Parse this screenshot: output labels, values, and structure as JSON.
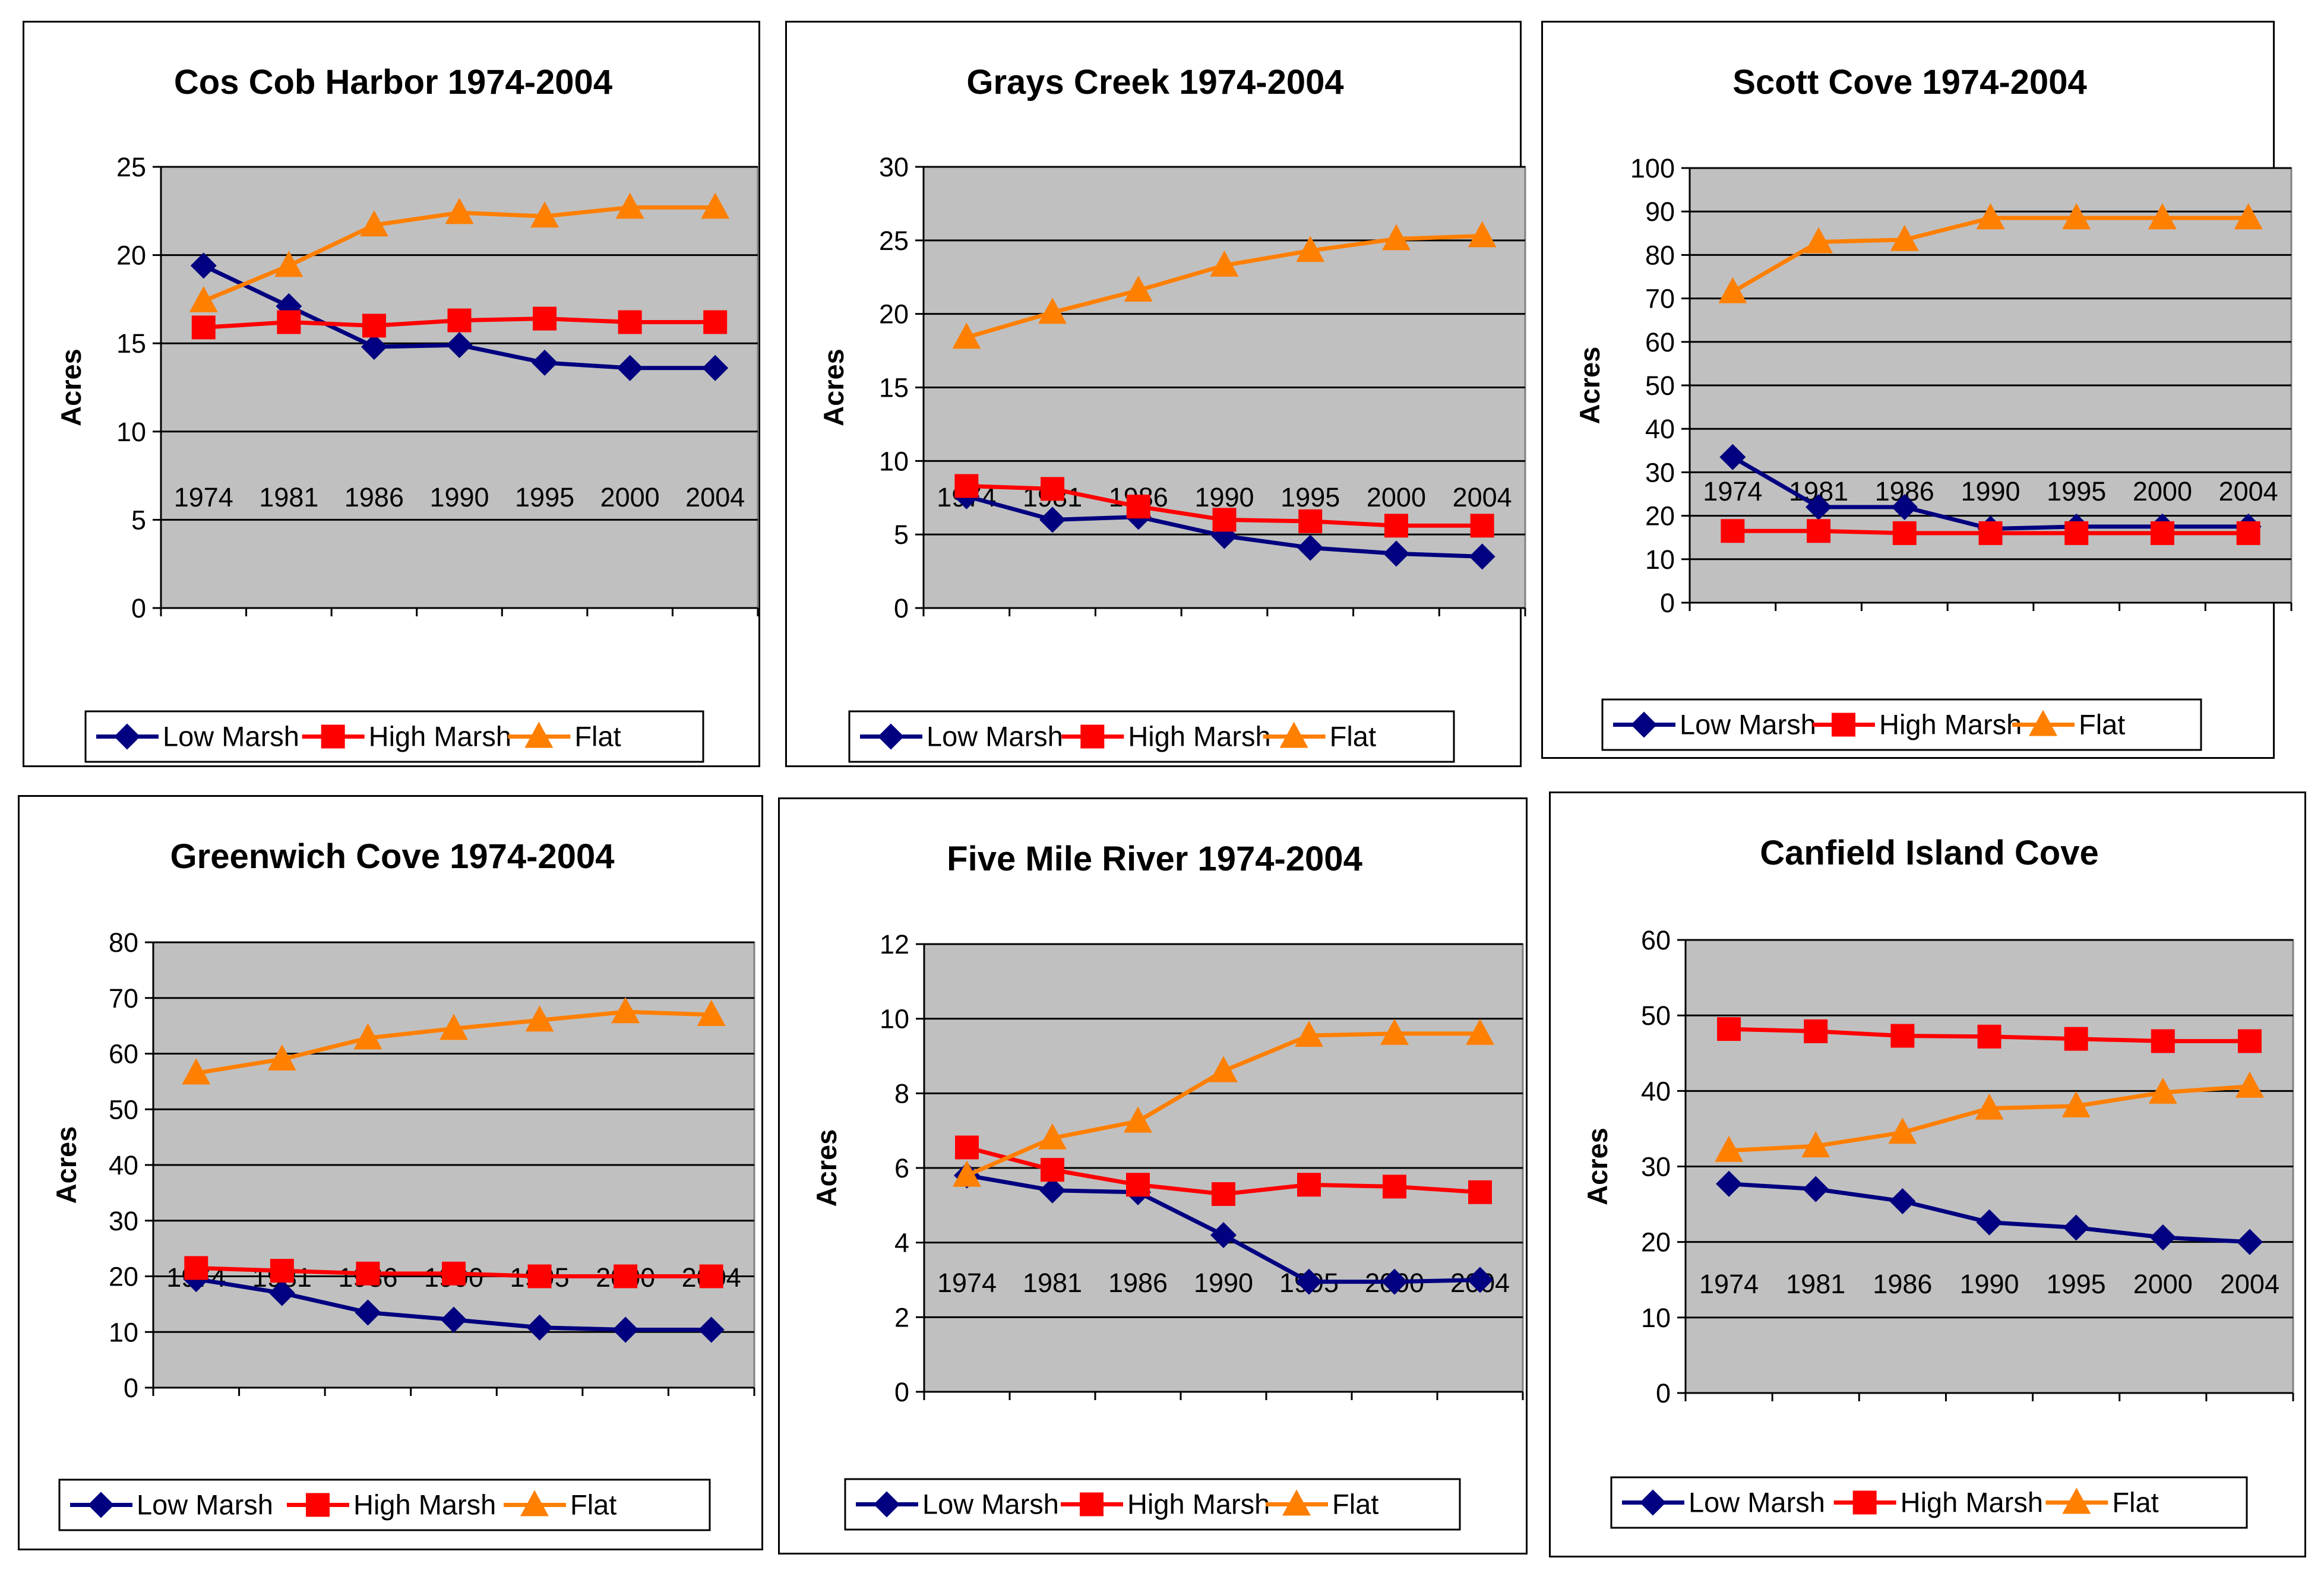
{
  "series_styles": {
    "Low Marsh": {
      "color": "#000080",
      "marker": "diamond"
    },
    "High Marsh": {
      "color": "#ff0000",
      "marker": "square"
    },
    "Flat": {
      "color": "#ff7f00",
      "marker": "triangle"
    }
  },
  "plot_background": "#c0c0c0",
  "chart_data": [
    {
      "type": "line",
      "title": "Cos Cob Harbor 1974-2004",
      "ylabel": "Acres",
      "categories": [
        "1974",
        "1981",
        "1986",
        "1990",
        "1995",
        "2000",
        "2004"
      ],
      "ylim": [
        0,
        25
      ],
      "yticks": [
        0,
        5,
        10,
        15,
        20,
        25
      ],
      "grid": true,
      "legend": "bottom",
      "series": [
        {
          "name": "Low Marsh",
          "values": [
            19.4,
            17.1,
            14.8,
            14.9,
            13.9,
            13.6,
            13.6
          ]
        },
        {
          "name": "High Marsh",
          "values": [
            15.9,
            16.2,
            16.0,
            16.3,
            16.4,
            16.2,
            16.2
          ]
        },
        {
          "name": "Flat",
          "values": [
            17.4,
            19.4,
            21.7,
            22.4,
            22.2,
            22.7,
            22.7
          ]
        }
      ]
    },
    {
      "type": "line",
      "title": "Grays Creek 1974-2004",
      "ylabel": "Acres",
      "categories": [
        "1974",
        "1981",
        "1986",
        "1990",
        "1995",
        "2000",
        "2004"
      ],
      "ylim": [
        0,
        30
      ],
      "yticks": [
        0,
        5,
        10,
        15,
        20,
        25,
        30
      ],
      "grid": true,
      "legend": "bottom",
      "series": [
        {
          "name": "Low Marsh",
          "values": [
            7.6,
            6.0,
            6.2,
            4.9,
            4.1,
            3.7,
            3.5
          ]
        },
        {
          "name": "High Marsh",
          "values": [
            8.3,
            8.1,
            6.9,
            6.0,
            5.9,
            5.6,
            5.6
          ]
        },
        {
          "name": "Flat",
          "values": [
            18.4,
            20.1,
            21.6,
            23.3,
            24.3,
            25.1,
            25.3
          ]
        }
      ]
    },
    {
      "type": "line",
      "title": "Scott Cove 1974-2004",
      "ylabel": "Acres",
      "categories": [
        "1974",
        "1981",
        "1986",
        "1990",
        "1995",
        "2000",
        "2004"
      ],
      "ylim": [
        0,
        100
      ],
      "yticks": [
        0,
        10,
        20,
        30,
        40,
        50,
        60,
        70,
        80,
        90,
        100
      ],
      "grid": true,
      "legend": "bottom",
      "series": [
        {
          "name": "Low Marsh",
          "values": [
            33.5,
            22.0,
            22.0,
            17.0,
            17.5,
            17.5,
            17.5
          ]
        },
        {
          "name": "High Marsh",
          "values": [
            16.5,
            16.5,
            16.0,
            16.0,
            16.0,
            16.0,
            16.0
          ]
        },
        {
          "name": "Flat",
          "values": [
            71.5,
            83.0,
            83.5,
            88.5,
            88.5,
            88.5,
            88.5
          ]
        }
      ]
    },
    {
      "type": "line",
      "title": "Greenwich Cove 1974-2004",
      "ylabel": "Acres",
      "categories": [
        "1974",
        "1981",
        "1986",
        "1990",
        "1995",
        "2000",
        "2004"
      ],
      "ylim": [
        0,
        80
      ],
      "yticks": [
        0,
        10,
        20,
        30,
        40,
        50,
        60,
        70,
        80
      ],
      "grid": true,
      "legend": "bottom",
      "series": [
        {
          "name": "Low Marsh",
          "values": [
            19.5,
            17.0,
            13.5,
            12.2,
            10.8,
            10.4,
            10.4
          ]
        },
        {
          "name": "High Marsh",
          "values": [
            21.5,
            21.0,
            20.5,
            20.5,
            20.0,
            20.0,
            20.0
          ]
        },
        {
          "name": "Flat",
          "values": [
            56.5,
            59.0,
            62.8,
            64.5,
            66.0,
            67.5,
            67.0
          ]
        }
      ]
    },
    {
      "type": "line",
      "title": "Five Mile River 1974-2004",
      "ylabel": "Acres",
      "categories": [
        "1974",
        "1981",
        "1986",
        "1990",
        "1995",
        "2000",
        "2004"
      ],
      "ylim": [
        0,
        12
      ],
      "yticks": [
        0,
        2,
        4,
        6,
        8,
        10,
        12
      ],
      "grid": true,
      "legend": "bottom",
      "series": [
        {
          "name": "Low Marsh",
          "values": [
            5.8,
            5.4,
            5.35,
            4.2,
            2.95,
            2.95,
            3.0
          ]
        },
        {
          "name": "High Marsh",
          "values": [
            6.55,
            5.95,
            5.55,
            5.3,
            5.55,
            5.5,
            5.35
          ]
        },
        {
          "name": "Flat",
          "values": [
            5.8,
            6.8,
            7.25,
            8.6,
            9.55,
            9.6,
            9.6
          ]
        }
      ]
    },
    {
      "type": "line",
      "title": "Canfield Island Cove",
      "ylabel": "Acres",
      "categories": [
        "1974",
        "1981",
        "1986",
        "1990",
        "1995",
        "2000",
        "2004"
      ],
      "ylim": [
        0,
        60
      ],
      "yticks": [
        0,
        10,
        20,
        30,
        40,
        50,
        60
      ],
      "grid": true,
      "legend": "bottom",
      "series": [
        {
          "name": "Low Marsh",
          "values": [
            27.7,
            27.0,
            25.4,
            22.6,
            21.9,
            20.6,
            20.0
          ]
        },
        {
          "name": "High Marsh",
          "values": [
            48.2,
            47.9,
            47.3,
            47.2,
            46.9,
            46.6,
            46.6
          ]
        },
        {
          "name": "Flat",
          "values": [
            32.1,
            32.7,
            34.5,
            37.7,
            38.0,
            39.8,
            40.6
          ]
        }
      ]
    }
  ]
}
